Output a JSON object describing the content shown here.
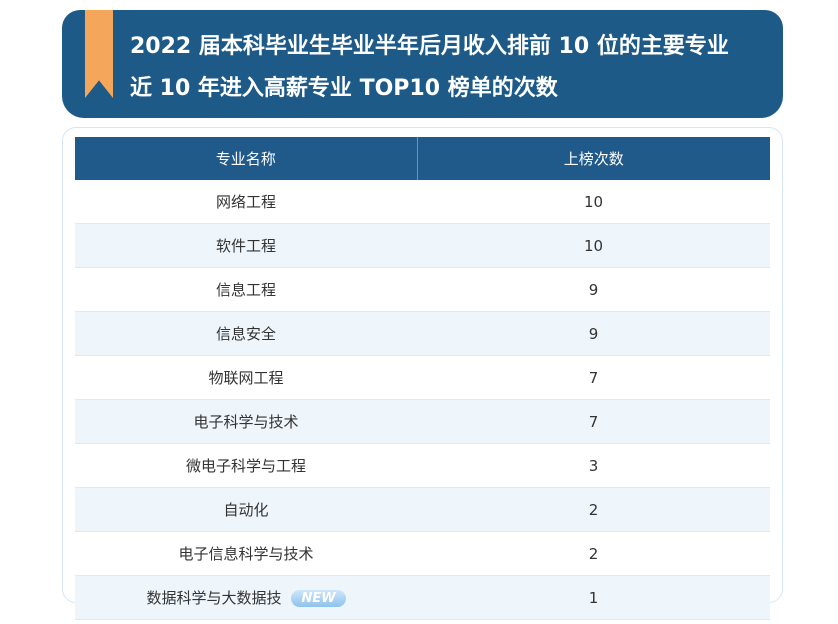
{
  "header": {
    "title_lines": [
      "2022 届本科毕业生毕业半年后月收入排前 10 位的主要专业",
      "近 10 年进入高薪专业 TOP10 榜单的次数"
    ]
  },
  "table": {
    "columns": [
      "专业名称",
      "上榜次数"
    ],
    "rows": [
      [
        "网络工程",
        10
      ],
      [
        "软件工程",
        10
      ],
      [
        "信息工程",
        9
      ],
      [
        "信息安全",
        9
      ],
      [
        "物联网工程",
        7
      ],
      [
        "电子科学与技术",
        7
      ],
      [
        "微电子科学与工程",
        3
      ],
      [
        "自动化",
        2
      ],
      [
        "电子信息科学与技术",
        2
      ],
      [
        "数据科学与大数据技",
        1
      ]
    ],
    "badge": {
      "row": 9,
      "text": "NEW"
    }
  }
}
